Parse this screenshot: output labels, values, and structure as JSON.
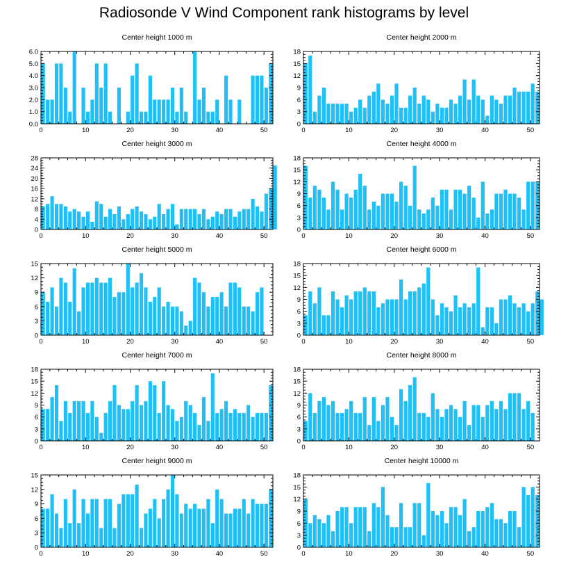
{
  "title": "Radiosonde V Wind Component rank histograms by level",
  "colors": {
    "bar": "#1EC0F8",
    "axis": "#000000"
  },
  "chart_data": [
    {
      "type": "bar",
      "title": "Center height 1000 m",
      "xlim": [
        0,
        52
      ],
      "ylim": [
        0,
        6
      ],
      "xticks": [
        "0",
        "10",
        "20",
        "30",
        "40",
        "50"
      ],
      "yticks": [
        "0.0",
        "1.0",
        "2.0",
        "3.0",
        "4.0",
        "5.0",
        "6.0"
      ],
      "values": [
        5,
        2,
        2,
        5,
        5,
        3,
        1,
        6,
        0,
        3,
        1,
        2,
        5,
        3,
        5,
        1,
        0,
        3,
        0,
        1,
        4,
        5,
        1,
        1,
        4,
        2,
        2,
        2,
        2,
        3,
        1,
        3,
        1,
        0,
        6,
        2,
        3,
        1,
        1,
        2,
        0,
        4,
        2,
        0,
        2,
        0,
        0,
        4,
        4,
        4,
        3,
        5
      ]
    },
    {
      "type": "bar",
      "title": "Center height 2000 m",
      "xlim": [
        0,
        52
      ],
      "ylim": [
        0,
        18
      ],
      "xticks": [
        "0",
        "10",
        "20",
        "30",
        "40",
        "50"
      ],
      "yticks": [
        "0",
        "3",
        "6",
        "9",
        "12",
        "15",
        "18"
      ],
      "values": [
        15,
        17,
        3,
        7,
        9,
        5,
        5,
        5,
        5,
        5,
        3,
        4,
        6,
        4,
        7,
        8,
        10,
        6,
        5,
        7,
        10,
        4,
        4,
        7,
        9,
        5,
        7,
        6,
        3,
        5,
        4,
        4,
        6,
        5,
        7,
        11,
        6,
        11,
        7,
        6,
        2,
        7,
        6,
        5,
        7,
        7,
        9,
        8,
        8,
        8,
        10,
        8
      ]
    },
    {
      "type": "bar",
      "title": "Center height 3000 m",
      "xlim": [
        0,
        52
      ],
      "ylim": [
        0,
        28
      ],
      "xticks": [
        "0",
        "10",
        "20",
        "30",
        "40",
        "50"
      ],
      "yticks": [
        "0",
        "4",
        "8",
        "12",
        "16",
        "20",
        "24",
        "28"
      ],
      "values": [
        9,
        10,
        13,
        10,
        10,
        9,
        7,
        8,
        7,
        5,
        7,
        3,
        11,
        10,
        5,
        8,
        6,
        9,
        4,
        6,
        8,
        9,
        7,
        6,
        4,
        5,
        10,
        6,
        8,
        10,
        2,
        8,
        8,
        8,
        8,
        6,
        8,
        4,
        5,
        7,
        6,
        8,
        8,
        5,
        7,
        8,
        8,
        12,
        9,
        7,
        14,
        16,
        25
      ]
    },
    {
      "type": "bar",
      "title": "Center height 4000 m",
      "xlim": [
        0,
        52
      ],
      "ylim": [
        0,
        18
      ],
      "xticks": [
        "0",
        "10",
        "20",
        "30",
        "40",
        "50"
      ],
      "yticks": [
        "0",
        "3",
        "6",
        "9",
        "12",
        "15",
        "18"
      ],
      "values": [
        16,
        8,
        11,
        10,
        8,
        5,
        12,
        10,
        5,
        9,
        8,
        10,
        14,
        11,
        5,
        7,
        6,
        9,
        9,
        9,
        7,
        12,
        11,
        6,
        16,
        5,
        4,
        5,
        8,
        6,
        10,
        10,
        5,
        10,
        10,
        9,
        11,
        8,
        3,
        12,
        4,
        5,
        9,
        9,
        10,
        9,
        9,
        8,
        5,
        12,
        12,
        12
      ]
    },
    {
      "type": "bar",
      "title": "Center height 5000 m",
      "xlim": [
        0,
        52
      ],
      "ylim": [
        0,
        15
      ],
      "xticks": [
        "0",
        "10",
        "20",
        "30",
        "40",
        "50"
      ],
      "yticks": [
        "0",
        "3",
        "6",
        "9",
        "12",
        "15"
      ],
      "values": [
        9,
        7,
        10,
        6,
        12,
        11,
        7,
        14,
        5,
        10,
        11,
        11,
        12,
        11,
        11,
        12,
        8,
        9,
        9,
        15,
        10,
        11,
        13,
        10,
        7,
        8,
        10,
        6,
        7,
        6,
        6,
        5,
        2,
        3,
        12,
        11,
        9,
        6,
        8,
        8,
        9,
        6,
        11,
        11,
        10,
        6,
        6,
        5,
        9,
        10
      ]
    },
    {
      "type": "bar",
      "title": "Center height 6000 m",
      "xlim": [
        0,
        52
      ],
      "ylim": [
        0,
        18
      ],
      "xticks": [
        "0",
        "10",
        "20",
        "30",
        "40",
        "50"
      ],
      "yticks": [
        "0",
        "3",
        "6",
        "9",
        "12",
        "15",
        "18"
      ],
      "values": [
        5,
        11,
        8,
        12,
        5,
        5,
        11,
        9,
        7,
        10,
        9,
        11,
        11,
        12,
        11,
        11,
        7,
        8,
        9,
        9,
        9,
        14,
        9,
        11,
        11,
        12,
        13,
        17,
        9,
        5,
        8,
        7,
        6,
        10,
        7,
        8,
        7,
        8,
        17,
        2,
        7,
        7,
        3,
        9,
        9,
        10,
        8,
        7,
        8,
        6,
        8,
        11,
        9
      ]
    },
    {
      "type": "bar",
      "title": "Center height 7000 m",
      "xlim": [
        0,
        52
      ],
      "ylim": [
        0,
        18
      ],
      "xticks": [
        "0",
        "10",
        "20",
        "30",
        "40",
        "50"
      ],
      "yticks": [
        "0",
        "3",
        "6",
        "9",
        "12",
        "15",
        "18"
      ],
      "values": [
        8,
        8,
        11,
        14,
        5,
        10,
        7,
        10,
        10,
        10,
        7,
        10,
        6,
        2,
        7,
        10,
        14,
        9,
        8,
        8,
        10,
        14,
        9,
        10,
        15,
        14,
        7,
        15,
        9,
        8,
        5,
        6,
        10,
        9,
        7,
        4,
        11,
        5,
        17,
        7,
        8,
        10,
        7,
        8,
        7,
        7,
        9,
        6,
        7,
        7,
        7,
        14
      ]
    },
    {
      "type": "bar",
      "title": "Center height 8000 m",
      "xlim": [
        0,
        52
      ],
      "ylim": [
        0,
        18
      ],
      "xticks": [
        "0",
        "10",
        "20",
        "30",
        "40",
        "50"
      ],
      "yticks": [
        "0",
        "3",
        "6",
        "9",
        "12",
        "15",
        "18"
      ],
      "values": [
        5,
        12,
        7,
        10,
        11,
        9,
        10,
        7,
        7,
        8,
        10,
        7,
        7,
        11,
        4,
        11,
        5,
        9,
        11,
        6,
        4,
        13,
        10,
        14,
        16,
        7,
        7,
        6,
        12,
        8,
        6,
        8,
        9,
        8,
        6,
        10,
        4,
        9,
        9,
        6,
        9,
        10,
        8,
        10,
        8,
        12,
        12,
        12,
        8,
        10,
        7
      ]
    },
    {
      "type": "bar",
      "title": "Center height 9000 m",
      "xlim": [
        0,
        52
      ],
      "ylim": [
        0,
        15
      ],
      "xticks": [
        "0",
        "10",
        "20",
        "30",
        "40",
        "50"
      ],
      "yticks": [
        "0",
        "3",
        "6",
        "9",
        "12",
        "15"
      ],
      "values": [
        8,
        8,
        11,
        7,
        4,
        10,
        5,
        12,
        5,
        10,
        7,
        10,
        10,
        4,
        10,
        10,
        4,
        9,
        11,
        11,
        11,
        13,
        4,
        7,
        8,
        10,
        6,
        10,
        12,
        15,
        11,
        7,
        9,
        8,
        9,
        8,
        8,
        10,
        5,
        12,
        10,
        7,
        7,
        8,
        8,
        10,
        7,
        10,
        9,
        9,
        9,
        12
      ]
    },
    {
      "type": "bar",
      "title": "Center height 10000 m",
      "xlim": [
        0,
        52
      ],
      "ylim": [
        0,
        18
      ],
      "xticks": [
        "0",
        "10",
        "20",
        "30",
        "40",
        "50"
      ],
      "yticks": [
        "0",
        "3",
        "6",
        "9",
        "12",
        "15",
        "18"
      ],
      "values": [
        12,
        6,
        8,
        7,
        6,
        8,
        4,
        9,
        10,
        10,
        6,
        10,
        10,
        10,
        4,
        11,
        10,
        15,
        8,
        5,
        5,
        11,
        5,
        5,
        11,
        11,
        3,
        16,
        9,
        8,
        9,
        6,
        10,
        10,
        8,
        12,
        4,
        5,
        9,
        9,
        10,
        11,
        7,
        7,
        6,
        9,
        9,
        5,
        15,
        13,
        15,
        13
      ]
    }
  ]
}
